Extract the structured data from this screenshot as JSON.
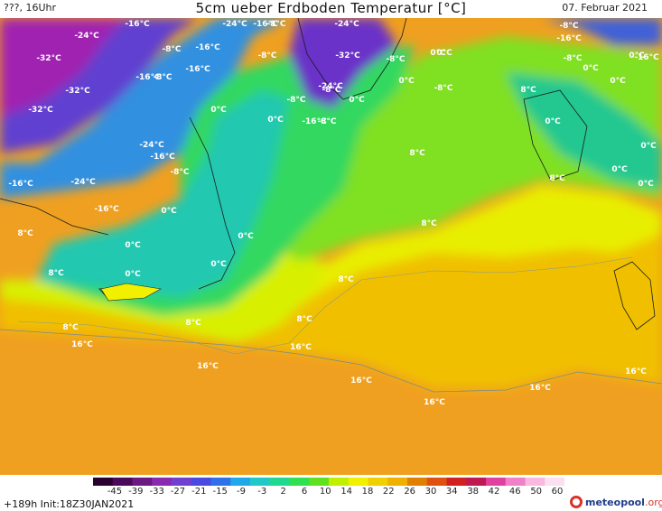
{
  "header": {
    "left": "???, 16Uhr",
    "title": "5cm ueber Erdboden Temperatur [°C]",
    "date": "07. Februar 2021"
  },
  "map_labels": [
    "-16°C",
    "-24°C",
    "-24°C",
    "-16°C",
    "-24°C",
    "-16°C",
    "-32°C",
    "-16°C",
    "-8°C",
    "-8°C",
    "-8°C",
    "-16°C",
    "-8°C",
    "-32°C",
    "-8°C",
    "0°C",
    "-24°C",
    "-32°C",
    "-8°C",
    "0°C",
    "-16°C",
    "-8°C",
    "0°C",
    "-32°C",
    "-8°C",
    "0°C",
    "-24°C",
    "-16°C",
    "0°C",
    "-8°C",
    "-16°C",
    "-24°C",
    "0°C",
    "-8°C",
    "-16°C",
    "-16°C",
    "0°C",
    "-8°C",
    "0°C",
    "-8°C",
    "0°C",
    "8°C",
    "0°C",
    "8°C",
    "0°C",
    "0°C",
    "-16°C",
    "0°C",
    "8°C",
    "0°C",
    "8°C",
    "16°C",
    "8°C",
    "8°C",
    "16°C",
    "16°C",
    "16°C",
    "16°C",
    "16°C",
    "16°C",
    "8°C",
    "8°C",
    "0°C",
    "0°C",
    "0°C",
    "8°C",
    "8°C",
    "0°C"
  ],
  "legend": {
    "ticks": [
      "-45",
      "-39",
      "-33",
      "-27",
      "-21",
      "-15",
      "-9",
      "-3",
      "2",
      "6",
      "10",
      "14",
      "18",
      "22",
      "26",
      "30",
      "34",
      "38",
      "42",
      "46",
      "50",
      "60"
    ],
    "colors": [
      "#2a0030",
      "#4a0a5a",
      "#6a1a80",
      "#8a2ab0",
      "#7040d0",
      "#4a4ae0",
      "#3070e8",
      "#20a8e8",
      "#20c8c8",
      "#20d890",
      "#30e050",
      "#60e020",
      "#c0f000",
      "#f0f000",
      "#f0d000",
      "#f0b000",
      "#e08000",
      "#e05010",
      "#d02020",
      "#c01850",
      "#e040a0",
      "#f080c8",
      "#f8b8e0",
      "#fde0f0"
    ]
  },
  "footer": {
    "run_info": "+189h  Init:18Z30JAN2021",
    "brand_main": "meteopool",
    "brand_suffix": ".org"
  }
}
